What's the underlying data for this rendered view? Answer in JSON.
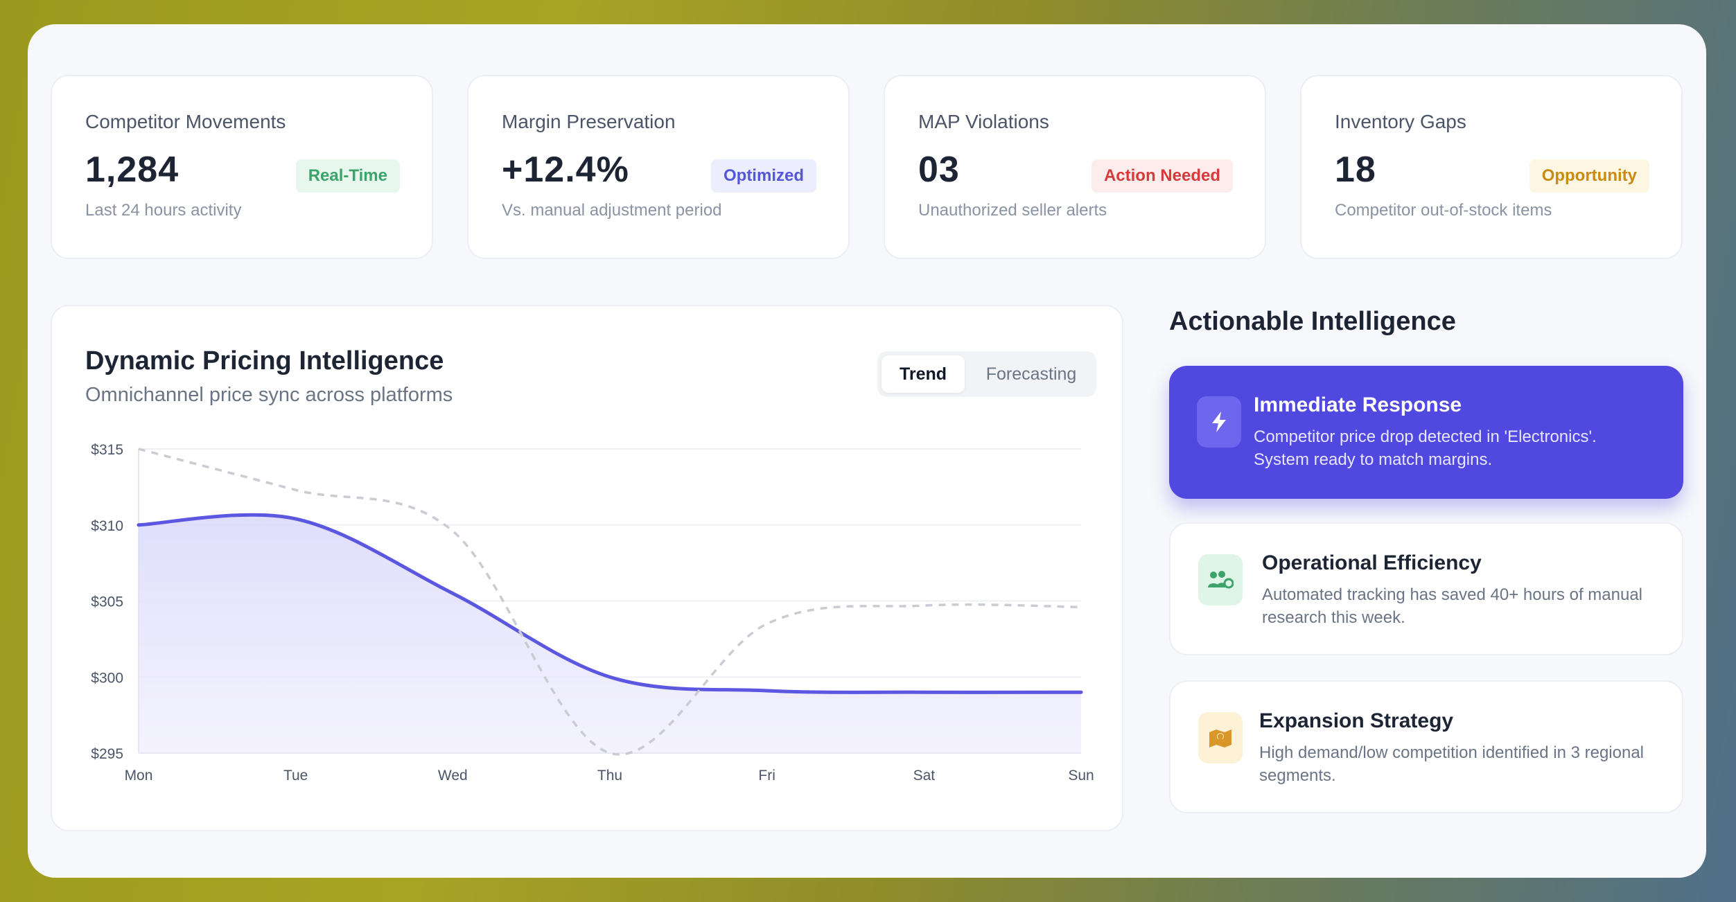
{
  "stats": [
    {
      "label": "Competitor Movements",
      "value": "1,284",
      "badge": "Real-Time",
      "sub": "Last 24 hours activity"
    },
    {
      "label": "Margin Preservation",
      "value": "+12.4%",
      "badge": "Optimized",
      "sub": "Vs. manual adjustment period"
    },
    {
      "label": "MAP Violations",
      "value": "03",
      "badge": "Action Needed",
      "sub": "Unauthorized seller alerts"
    },
    {
      "label": "Inventory Gaps",
      "value": "18",
      "badge": "Opportunity",
      "sub": "Competitor out-of-stock items"
    }
  ],
  "chart_panel": {
    "title": "Dynamic Pricing Intelligence",
    "subtitle": "Omnichannel price sync across platforms",
    "tabs": [
      "Trend",
      "Forecasting"
    ],
    "active_tab": "Trend"
  },
  "chart_data": {
    "type": "area",
    "categories": [
      "Mon",
      "Tue",
      "Wed",
      "Thu",
      "Fri",
      "Sat",
      "Sun"
    ],
    "y_tick_labels": [
      "$315",
      "$310",
      "$305",
      "$300",
      "$295"
    ],
    "y_ticks": [
      315,
      310,
      305,
      300,
      295
    ],
    "ylim": [
      295,
      315
    ],
    "grid": true,
    "series": [
      {
        "style": "solid-filled",
        "color": "#5b57e0",
        "values": [
          310.0,
          310.4,
          305.5,
          300.0,
          299.1,
          299.0,
          299.0
        ]
      },
      {
        "style": "dashed",
        "color": "#c9ccd3",
        "values": [
          315.0,
          312.3,
          309.6,
          295.0,
          303.5,
          304.7,
          304.6
        ]
      }
    ]
  },
  "insights_title": "Actionable Intelligence",
  "insights": [
    {
      "title": "Immediate Response",
      "text": "Competitor price drop detected in 'Electronics'. System ready to match margins.",
      "icon": "lightning-icon"
    },
    {
      "title": "Operational Efficiency",
      "text": "Automated tracking has saved 40+ hours of manual research this week.",
      "icon": "team-icon"
    },
    {
      "title": "Expansion Strategy",
      "text": "High demand/low competition identified in 3 regional segments.",
      "icon": "map-icon"
    }
  ],
  "colors": {
    "accent": "#5148e0",
    "green": "#3ca36a",
    "indigo": "#5457d6",
    "red": "#d63a3a",
    "amber": "#c98b12"
  }
}
